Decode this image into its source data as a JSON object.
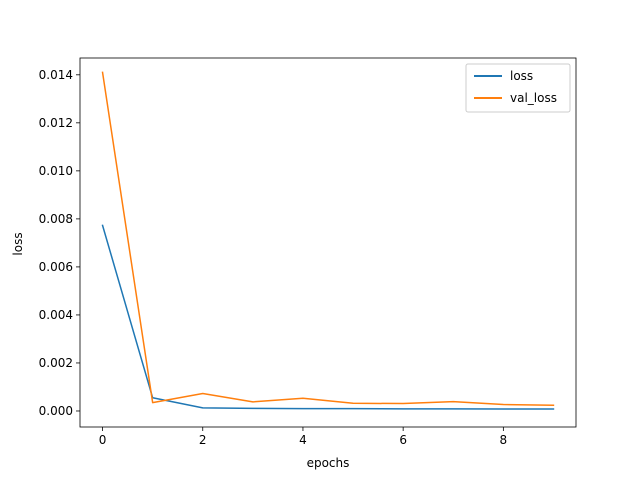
{
  "chart_data": {
    "type": "line",
    "xlabel": "epochs",
    "ylabel": "loss",
    "xlim": [
      -0.45,
      9.45
    ],
    "ylim": [
      -0.000667,
      0.0147
    ],
    "x_ticks": [
      0,
      2,
      4,
      6,
      8
    ],
    "x_tick_labels": [
      "0",
      "2",
      "4",
      "6",
      "8"
    ],
    "y_ticks": [
      0.0,
      0.002,
      0.004,
      0.006,
      0.008,
      0.01,
      0.012,
      0.014
    ],
    "y_tick_labels": [
      "0.000",
      "0.002",
      "0.004",
      "0.006",
      "0.008",
      "0.010",
      "0.012",
      "0.014"
    ],
    "grid": false,
    "legend_position": "top-right",
    "x": [
      0,
      1,
      2,
      3,
      4,
      5,
      6,
      7,
      8,
      9
    ],
    "series": [
      {
        "name": "loss",
        "color": "#1f77b4",
        "values": [
          0.00773,
          0.00055,
          0.00013,
          0.00011,
          0.0001,
          0.0001,
          9e-05,
          9e-05,
          8e-05,
          8e-05
        ]
      },
      {
        "name": "val_loss",
        "color": "#ff7f0e",
        "values": [
          0.0141,
          0.00035,
          0.00073,
          0.00038,
          0.00053,
          0.00032,
          0.00031,
          0.00039,
          0.00027,
          0.00024
        ]
      }
    ]
  }
}
